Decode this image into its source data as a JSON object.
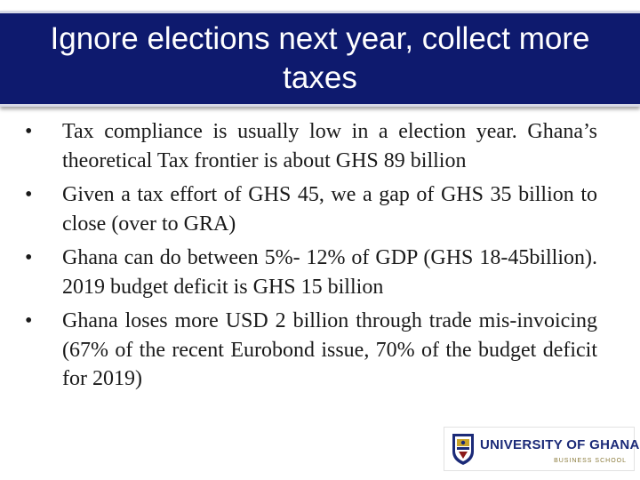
{
  "slide": {
    "title": "Ignore elections next year, collect more taxes",
    "bullets": [
      "Tax compliance is usually low in a election year. Ghana’s theoretical Tax frontier is about GHS 89 billion",
      "Given a tax effort of GHS 45, we a gap of GHS 35 billion to close (over to GRA)",
      "Ghana can do between 5%- 12% of GDP (GHS 18-45billion). 2019 budget deficit is GHS 15 billion",
      "Ghana loses more USD 2 billion through trade mis-invoicing (67% of the recent Eurobond issue, 70% of the budget deficit for 2019)"
    ],
    "bullet_symbol": "•"
  },
  "logo": {
    "name": "UNIVERSITY OF GHANA",
    "subtitle": "BUSINESS SCHOOL",
    "icon": "crest-icon"
  },
  "colors": {
    "title_bar": "#0e1a6e",
    "title_text": "#ffffff",
    "body_text": "#1a1a1a",
    "logo_blue": "#1b2a78",
    "logo_gold": "#8a7a3a"
  }
}
